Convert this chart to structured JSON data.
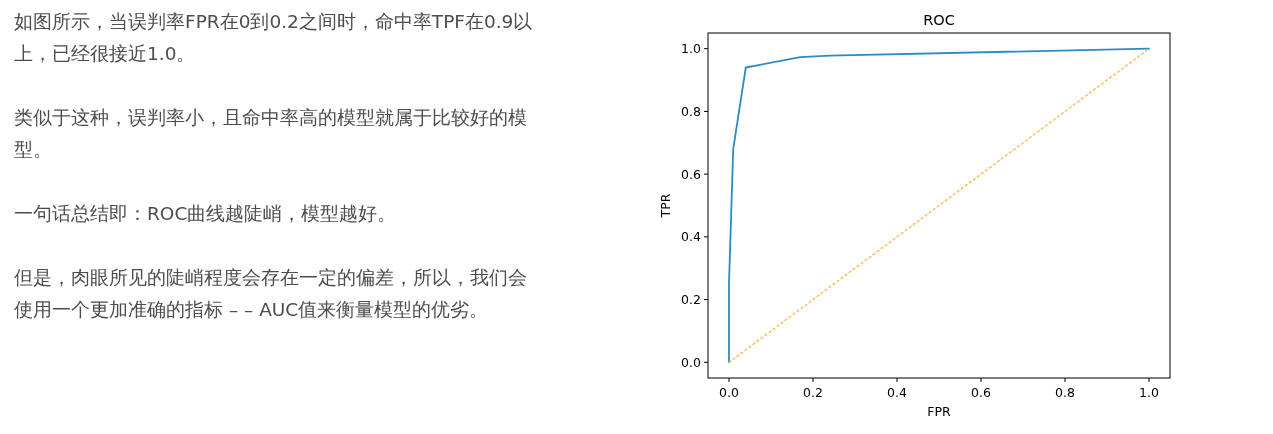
{
  "chart_data": {
    "type": "line",
    "title": "ROC",
    "xlabel": "FPR",
    "ylabel": "TPR",
    "xlim": [
      -0.05,
      1.05
    ],
    "ylim": [
      -0.05,
      1.05
    ],
    "xticks": [
      {
        "value": 0,
        "label": "0.0"
      },
      0.2,
      0.4,
      0.6,
      0.8,
      {
        "value": 1,
        "label": "1.0"
      }
    ],
    "yticks": [
      {
        "value": 0,
        "label": "0.0"
      },
      0.2,
      0.4,
      0.6,
      0.8,
      {
        "value": 1,
        "label": "1.0"
      }
    ],
    "series": [
      {
        "color": "#2b8cc4",
        "line_style": "solid",
        "x": [
          0,
          0,
          0.01,
          0.04,
          0.17,
          0.24,
          1
        ],
        "values": [
          0,
          0.25,
          0.68,
          0.94,
          0.973,
          0.978,
          1
        ]
      },
      {
        "color": "#ffb347",
        "line_style": "dotted",
        "x": [
          0,
          1
        ],
        "values": [
          0,
          1
        ]
      }
    ],
    "annotations": [
      "如图所示，当误判率FPR在0到0.2之间时，命中率TPF在0.9以上，已经很接近1.0。",
      "类似于这种，误判率小，且命中率高的模型就属于比较好的模型。",
      "一句话总结即：ROC曲线越陡峭，模型越好。",
      "但是，肉眼所见的陡峭程度会存在一定的偏差，所以，我们会使用一个更加准确的指标 – – AUC值来衡量模型的优劣。"
    ]
  }
}
